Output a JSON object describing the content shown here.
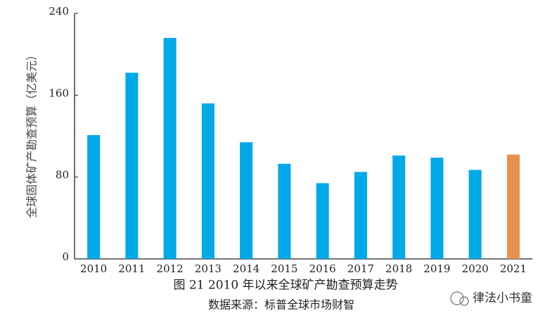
{
  "chart_data": {
    "type": "bar",
    "y_label": "全球固体矿产勘查预算（亿美元）",
    "caption": "图 21 2010 年以来全球矿产勘查预算走势",
    "source": "数据来源：标普全球市场财智",
    "watermark": "律法小书童",
    "categories": [
      "2010",
      "2011",
      "2012",
      "2013",
      "2014",
      "2015",
      "2016",
      "2017",
      "2018",
      "2019",
      "2020",
      "2021"
    ],
    "values": [
      121,
      182,
      216,
      152,
      114,
      93,
      74,
      85,
      101,
      99,
      87,
      102
    ],
    "colors": [
      "#00a9e8",
      "#00a9e8",
      "#00a9e8",
      "#00a9e8",
      "#00a9e8",
      "#00a9e8",
      "#00a9e8",
      "#00a9e8",
      "#00a9e8",
      "#00a9e8",
      "#00a9e8",
      "#e8914d"
    ],
    "ylim": [
      0,
      240
    ],
    "yticks": [
      0,
      80,
      160,
      240
    ],
    "grid": false
  }
}
